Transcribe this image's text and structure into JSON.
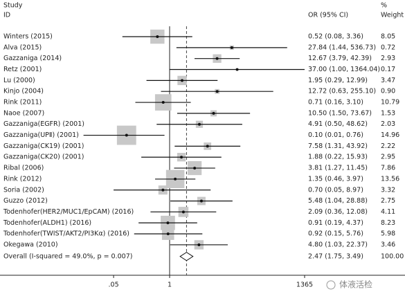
{
  "chart_data": {
    "type": "forest",
    "header": {
      "study": "Study",
      "id": "ID",
      "or": "OR (95% CI)",
      "pct": "%",
      "weight": "Weight"
    },
    "log_scale": true,
    "xlim": [
      0.0007326,
      1365
    ],
    "xticks": [
      {
        "value": 0.05,
        "label": ".05"
      },
      1,
      1365
    ],
    "box_color": "#c8c8c8",
    "studies": [
      {
        "name": "Winters (2015)",
        "or": 0.52,
        "lower": 0.08,
        "upper": 3.36,
        "or_label": "0.52 (0.08, 3.36)",
        "weight": 8.05,
        "weight_label": "8.05"
      },
      {
        "name": "Alva (2015)",
        "or": 27.84,
        "lower": 1.44,
        "upper": 536.73,
        "or_label": "27.84 (1.44, 536.73)",
        "weight": 0.72,
        "weight_label": "0.72"
      },
      {
        "name": "Gazzaniga (2014)",
        "or": 12.67,
        "lower": 3.79,
        "upper": 42.39,
        "or_label": "12.67 (3.79, 42.39)",
        "weight": 2.93,
        "weight_label": "2.93"
      },
      {
        "name": "Retz (2001)",
        "or": 37.0,
        "lower": 1.0,
        "upper": 1364.04,
        "or_label": "37.00 (1.00, 1364.04)",
        "weight": 0.17,
        "weight_label": "0.17"
      },
      {
        "name": "Lu (2000)",
        "or": 1.95,
        "lower": 0.29,
        "upper": 12.99,
        "or_label": "1.95 (0.29, 12.99)",
        "weight": 3.47,
        "weight_label": "3.47"
      },
      {
        "name": "Kinjo (2004)",
        "or": 12.72,
        "lower": 0.63,
        "upper": 255.1,
        "or_label": "12.72 (0.63, 255.10)",
        "weight": 0.9,
        "weight_label": "0.90"
      },
      {
        "name": "Rink (2011)",
        "or": 0.71,
        "lower": 0.16,
        "upper": 3.1,
        "or_label": "0.71 (0.16, 3.10)",
        "weight": 10.79,
        "weight_label": "10.79"
      },
      {
        "name": "Naoe (2007)",
        "or": 10.5,
        "lower": 1.5,
        "upper": 73.67,
        "or_label": "10.50 (1.50, 73.67)",
        "weight": 1.53,
        "weight_label": "1.53"
      },
      {
        "name": "Gazzaniga(EGFR) (2001)",
        "or": 4.91,
        "lower": 0.5,
        "upper": 48.62,
        "or_label": "4.91 (0.50, 48.62)",
        "weight": 2.03,
        "weight_label": "2.03"
      },
      {
        "name": "Gazzaniga(UPⅡ) (2001)",
        "or": 0.1,
        "lower": 0.01,
        "upper": 0.76,
        "or_label": "0.10 (0.01, 0.76)",
        "weight": 14.96,
        "weight_label": "14.96"
      },
      {
        "name": "Gazzaniga(CK19) (2001)",
        "or": 7.58,
        "lower": 1.31,
        "upper": 43.92,
        "or_label": "7.58 (1.31, 43.92)",
        "weight": 2.22,
        "weight_label": "2.22"
      },
      {
        "name": "Gazzaniga(CK20) (2001)",
        "or": 1.88,
        "lower": 0.22,
        "upper": 15.93,
        "or_label": "1.88 (0.22, 15.93)",
        "weight": 2.95,
        "weight_label": "2.95"
      },
      {
        "name": "Ribal (2006)",
        "or": 3.81,
        "lower": 1.27,
        "upper": 11.45,
        "or_label": "3.81 (1.27, 11.45)",
        "weight": 7.86,
        "weight_label": "7.86"
      },
      {
        "name": "Rink (2012)",
        "or": 1.35,
        "lower": 0.46,
        "upper": 3.97,
        "or_label": "1.35 (0.46, 3.97)",
        "weight": 13.56,
        "weight_label": "13.56"
      },
      {
        "name": "Soria (2002)",
        "or": 0.7,
        "lower": 0.05,
        "upper": 8.97,
        "or_label": "0.70 (0.05, 8.97)",
        "weight": 3.32,
        "weight_label": "3.32"
      },
      {
        "name": "Guzzo (2012)",
        "or": 5.48,
        "lower": 1.04,
        "upper": 28.88,
        "or_label": "5.48 (1.04, 28.88)",
        "weight": 2.75,
        "weight_label": "2.75"
      },
      {
        "name": "Todenhofer(HER2/MUC1/EpCAM) (2016)",
        "or": 2.09,
        "lower": 0.36,
        "upper": 12.08,
        "or_label": "2.09 (0.36, 12.08)",
        "weight": 4.11,
        "weight_label": "4.11"
      },
      {
        "name": "Todenhofer(ALDH1) (2016)",
        "or": 0.91,
        "lower": 0.19,
        "upper": 4.37,
        "or_label": "0.91 (0.19, 4.37)",
        "weight": 8.23,
        "weight_label": "8.23"
      },
      {
        "name": "Todenhofer(TWIST/AKT2/PI3Kα) (2016)",
        "or": 0.92,
        "lower": 0.15,
        "upper": 5.76,
        "or_label": "0.92 (0.15, 5.76)",
        "weight": 5.98,
        "weight_label": "5.98"
      },
      {
        "name": "Okegawa (2010)",
        "or": 4.8,
        "lower": 1.03,
        "upper": 22.37,
        "or_label": "4.80 (1.03, 22.37)",
        "weight": 3.46,
        "weight_label": "3.46"
      }
    ],
    "overall": {
      "name": "Overall  (I-squared = 49.0%, p = 0.007)",
      "or": 2.47,
      "lower": 1.75,
      "upper": 3.49,
      "or_label": "2.47 (1.75, 3.49)",
      "weight": 100,
      "weight_label": "100.00"
    },
    "watermark": "体液活检"
  }
}
